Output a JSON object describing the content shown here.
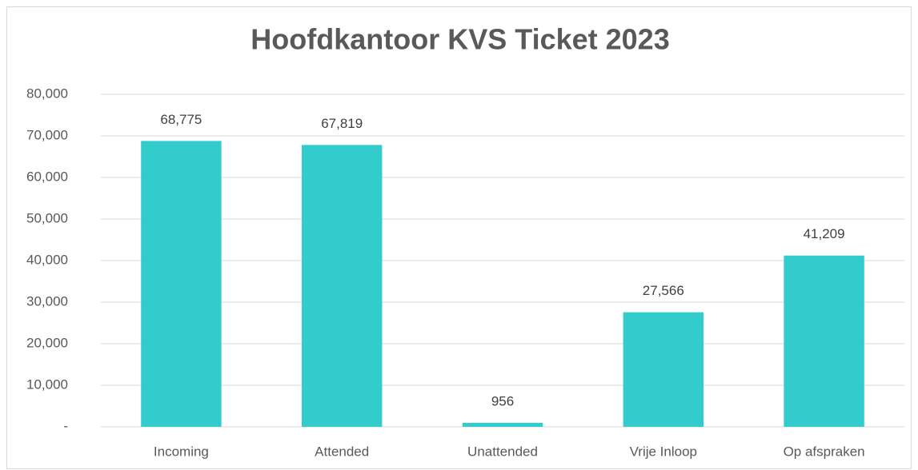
{
  "chart_data": {
    "type": "bar",
    "title": "Hoofdkantoor KVS Ticket 2023",
    "categories": [
      "Incoming",
      "Attended",
      "Unattended",
      "Vrije Inloop",
      "Op afspraken"
    ],
    "values": [
      68775,
      67819,
      956,
      27566,
      41209
    ],
    "value_labels": [
      "68,775",
      "67,819",
      "956",
      "27,566",
      "41,209"
    ],
    "color": "#33cccc",
    "ylim": [
      0,
      80000
    ],
    "yticks": [
      {
        "value": 0,
        "label": "-"
      },
      {
        "value": 10000,
        "label": "10,000"
      },
      {
        "value": 20000,
        "label": "20,000"
      },
      {
        "value": 30000,
        "label": "30,000"
      },
      {
        "value": 40000,
        "label": "40,000"
      },
      {
        "value": 50000,
        "label": "50,000"
      },
      {
        "value": 60000,
        "label": "60,000"
      },
      {
        "value": 70000,
        "label": "70,000"
      },
      {
        "value": 80000,
        "label": "80,000"
      }
    ],
    "grid": true
  }
}
